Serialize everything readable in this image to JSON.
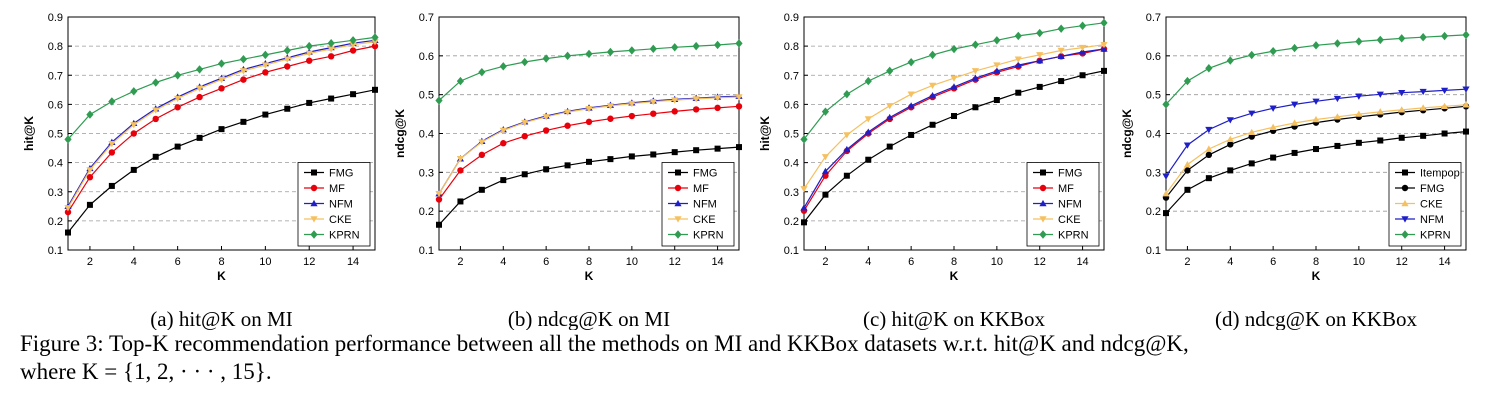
{
  "figure": {
    "caption_lines": [
      "Figure 3: Top-K recommendation performance between all the methods on MI and KKBox datasets w.r.t. hit@K and ndcg@K,",
      "where K = {1, 2, · · · , 15}."
    ]
  },
  "colors": {
    "FMG": "#000000",
    "MF": "#e8000b",
    "NFM": "#1f1fc8",
    "CKE": "#f5c060",
    "KPRN": "#2f9c52",
    "Itempop": "#000000",
    "grid": "#9a9a9a"
  },
  "chart_data": [
    {
      "type": "line",
      "subcaption": "(a) hit@K on MI",
      "xlabel": "K",
      "ylabel": "hit@K",
      "xlim": [
        1,
        15
      ],
      "ylim": [
        0.1,
        0.9
      ],
      "xticks": [
        2,
        4,
        6,
        8,
        10,
        12,
        14
      ],
      "yticks": [
        0.1,
        0.2,
        0.3,
        0.4,
        0.5,
        0.6,
        0.7,
        0.8,
        0.9
      ],
      "grid": "horizontal dashed",
      "legend": "bottom-right",
      "x": [
        1,
        2,
        3,
        4,
        5,
        6,
        7,
        8,
        9,
        10,
        11,
        12,
        13,
        14,
        15
      ],
      "series": [
        {
          "name": "FMG",
          "marker": "square",
          "values": [
            0.16,
            0.255,
            0.32,
            0.375,
            0.42,
            0.455,
            0.485,
            0.515,
            0.54,
            0.565,
            0.585,
            0.605,
            0.62,
            0.635,
            0.65
          ]
        },
        {
          "name": "MF",
          "marker": "circle",
          "values": [
            0.23,
            0.35,
            0.435,
            0.5,
            0.55,
            0.59,
            0.625,
            0.655,
            0.685,
            0.71,
            0.73,
            0.75,
            0.765,
            0.785,
            0.8
          ]
        },
        {
          "name": "NFM",
          "marker": "triangle",
          "values": [
            0.25,
            0.38,
            0.47,
            0.535,
            0.585,
            0.625,
            0.66,
            0.69,
            0.72,
            0.74,
            0.76,
            0.78,
            0.795,
            0.81,
            0.82
          ]
        },
        {
          "name": "CKE",
          "marker": "triangle-down",
          "values": [
            0.245,
            0.375,
            0.465,
            0.53,
            0.58,
            0.62,
            0.655,
            0.685,
            0.715,
            0.735,
            0.755,
            0.775,
            0.79,
            0.805,
            0.815
          ]
        },
        {
          "name": "KPRN",
          "marker": "diamond",
          "values": [
            0.48,
            0.565,
            0.61,
            0.645,
            0.675,
            0.7,
            0.72,
            0.74,
            0.755,
            0.77,
            0.785,
            0.8,
            0.81,
            0.82,
            0.83
          ]
        }
      ]
    },
    {
      "type": "line",
      "subcaption": "(b) ndcg@K on MI",
      "xlabel": "K",
      "ylabel": "ndcg@K",
      "xlim": [
        1,
        15
      ],
      "ylim": [
        0.1,
        0.7
      ],
      "xticks": [
        2,
        4,
        6,
        8,
        10,
        12,
        14
      ],
      "yticks": [
        0.1,
        0.2,
        0.3,
        0.4,
        0.5,
        0.6,
        0.7
      ],
      "grid": "horizontal dashed",
      "legend": "bottom-right",
      "x": [
        1,
        2,
        3,
        4,
        5,
        6,
        7,
        8,
        9,
        10,
        11,
        12,
        13,
        14,
        15
      ],
      "series": [
        {
          "name": "FMG",
          "marker": "square",
          "values": [
            0.165,
            0.225,
            0.255,
            0.28,
            0.295,
            0.308,
            0.318,
            0.327,
            0.334,
            0.341,
            0.346,
            0.352,
            0.357,
            0.361,
            0.365
          ]
        },
        {
          "name": "MF",
          "marker": "circle",
          "values": [
            0.23,
            0.305,
            0.345,
            0.375,
            0.393,
            0.408,
            0.42,
            0.43,
            0.438,
            0.445,
            0.451,
            0.457,
            0.462,
            0.466,
            0.47
          ]
        },
        {
          "name": "NFM",
          "marker": "triangle",
          "values": [
            0.245,
            0.335,
            0.38,
            0.41,
            0.43,
            0.445,
            0.457,
            0.466,
            0.473,
            0.479,
            0.484,
            0.488,
            0.491,
            0.494,
            0.496
          ]
        },
        {
          "name": "CKE",
          "marker": "triangle-down",
          "values": [
            0.245,
            0.335,
            0.378,
            0.408,
            0.428,
            0.443,
            0.455,
            0.464,
            0.471,
            0.477,
            0.482,
            0.486,
            0.489,
            0.492,
            0.494
          ]
        },
        {
          "name": "KPRN",
          "marker": "diamond",
          "values": [
            0.485,
            0.535,
            0.558,
            0.573,
            0.584,
            0.593,
            0.6,
            0.605,
            0.61,
            0.614,
            0.618,
            0.622,
            0.625,
            0.628,
            0.632
          ]
        }
      ]
    },
    {
      "type": "line",
      "subcaption": "(c) hit@K on KKBox",
      "xlabel": "K",
      "ylabel": "hit@K",
      "xlim": [
        1,
        15
      ],
      "ylim": [
        0.1,
        0.9
      ],
      "xticks": [
        2,
        4,
        6,
        8,
        10,
        12,
        14
      ],
      "yticks": [
        0.1,
        0.2,
        0.3,
        0.4,
        0.5,
        0.6,
        0.7,
        0.8,
        0.9
      ],
      "grid": "horizontal dashed",
      "legend": "bottom-right",
      "x": [
        1,
        2,
        3,
        4,
        5,
        6,
        7,
        8,
        9,
        10,
        11,
        12,
        13,
        14,
        15
      ],
      "series": [
        {
          "name": "FMG",
          "marker": "square",
          "values": [
            0.195,
            0.29,
            0.355,
            0.41,
            0.455,
            0.495,
            0.53,
            0.56,
            0.59,
            0.615,
            0.64,
            0.66,
            0.68,
            0.7,
            0.715
          ]
        },
        {
          "name": "MF",
          "marker": "circle",
          "values": [
            0.235,
            0.355,
            0.44,
            0.5,
            0.55,
            0.59,
            0.625,
            0.655,
            0.685,
            0.71,
            0.73,
            0.75,
            0.765,
            0.775,
            0.79
          ]
        },
        {
          "name": "NFM",
          "marker": "triangle",
          "values": [
            0.245,
            0.37,
            0.445,
            0.505,
            0.555,
            0.595,
            0.63,
            0.66,
            0.69,
            0.715,
            0.735,
            0.75,
            0.765,
            0.78,
            0.79
          ]
        },
        {
          "name": "CKE",
          "marker": "triangle-down",
          "values": [
            0.31,
            0.42,
            0.495,
            0.55,
            0.595,
            0.635,
            0.665,
            0.69,
            0.715,
            0.735,
            0.755,
            0.77,
            0.785,
            0.795,
            0.805
          ]
        },
        {
          "name": "KPRN",
          "marker": "diamond",
          "values": [
            0.48,
            0.575,
            0.635,
            0.68,
            0.715,
            0.745,
            0.77,
            0.79,
            0.805,
            0.82,
            0.835,
            0.845,
            0.86,
            0.87,
            0.88
          ]
        }
      ]
    },
    {
      "type": "line",
      "subcaption": "(d) ndcg@K on KKBox",
      "xlabel": "K",
      "ylabel": "ndcg@K",
      "xlim": [
        1,
        15
      ],
      "ylim": [
        0.1,
        0.7
      ],
      "xticks": [
        2,
        4,
        6,
        8,
        10,
        12,
        14
      ],
      "yticks": [
        0.1,
        0.2,
        0.3,
        0.4,
        0.5,
        0.6,
        0.7
      ],
      "grid": "horizontal dashed",
      "legend": "bottom-right",
      "x": [
        1,
        2,
        3,
        4,
        5,
        6,
        7,
        8,
        9,
        10,
        11,
        12,
        13,
        14,
        15
      ],
      "series": [
        {
          "name": "Itempop",
          "marker": "square",
          "values": [
            0.195,
            0.255,
            0.285,
            0.305,
            0.323,
            0.338,
            0.35,
            0.36,
            0.368,
            0.376,
            0.382,
            0.389,
            0.394,
            0.4,
            0.405
          ]
        },
        {
          "name": "FMG",
          "marker": "circle",
          "values": [
            0.235,
            0.305,
            0.345,
            0.372,
            0.392,
            0.407,
            0.418,
            0.428,
            0.436,
            0.443,
            0.449,
            0.455,
            0.46,
            0.465,
            0.47
          ]
        },
        {
          "name": "CKE",
          "marker": "triangle",
          "values": [
            0.245,
            0.32,
            0.36,
            0.385,
            0.403,
            0.416,
            0.427,
            0.436,
            0.443,
            0.45,
            0.456,
            0.461,
            0.466,
            0.47,
            0.474
          ]
        },
        {
          "name": "NFM",
          "marker": "triangle-down",
          "values": [
            0.29,
            0.37,
            0.41,
            0.435,
            0.452,
            0.465,
            0.475,
            0.483,
            0.49,
            0.496,
            0.501,
            0.505,
            0.508,
            0.511,
            0.514
          ]
        },
        {
          "name": "KPRN",
          "marker": "diamond",
          "values": [
            0.475,
            0.535,
            0.568,
            0.588,
            0.602,
            0.612,
            0.62,
            0.627,
            0.632,
            0.637,
            0.641,
            0.645,
            0.648,
            0.651,
            0.654
          ]
        }
      ]
    }
  ]
}
